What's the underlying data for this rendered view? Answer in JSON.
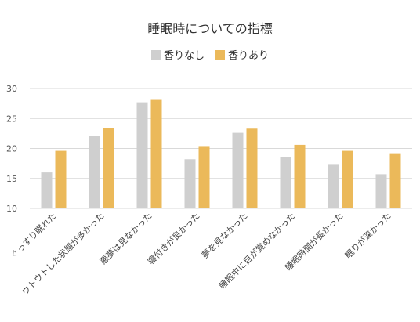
{
  "chart_data": {
    "type": "bar",
    "title": "睡眠時についての指標",
    "categories": [
      "ぐっすり眠れた",
      "ウトウトした状態が多かった",
      "悪夢は見なかった",
      "寝付きが良かった",
      "夢を見なかった",
      "睡眠中に目が覚めなかった",
      "睡眠時間が長かった",
      "眠りが深かった"
    ],
    "series": [
      {
        "name": "香りなし",
        "color": "#cfcfcf",
        "values": [
          16.0,
          22.1,
          27.7,
          18.2,
          22.6,
          18.6,
          17.4,
          15.7
        ]
      },
      {
        "name": "香りあり",
        "color": "#ebb95a",
        "values": [
          19.6,
          23.4,
          28.1,
          20.4,
          23.3,
          20.6,
          19.6,
          19.2
        ]
      }
    ],
    "yticks": [
      10,
      15,
      20,
      25,
      30
    ],
    "ylim": [
      10,
      30
    ],
    "legend_position": "top",
    "grid": true
  }
}
